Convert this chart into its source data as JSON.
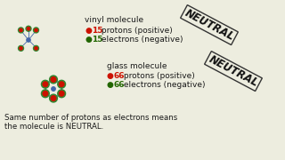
{
  "bg_color": "#ededdf",
  "title_vinyl": "vinyl molecule",
  "title_glass": "glass molecule",
  "vinyl_protons": "15",
  "vinyl_electrons": "15",
  "glass_protons": "66",
  "glass_electrons": "66",
  "proton_label": " protons (positive)",
  "electron_label": " electrons (negative)",
  "neutral_label": "NEUTRAL",
  "bottom_text_line1": "Same number of protons as electrons means",
  "bottom_text_line2": "the molecule is NEUTRAL.",
  "red_color": "#cc1100",
  "green_color": "#226600",
  "black_color": "#1a1a1a",
  "font_size_main": 6.5,
  "font_size_neutral": 8.5,
  "font_size_bottom": 6.2
}
